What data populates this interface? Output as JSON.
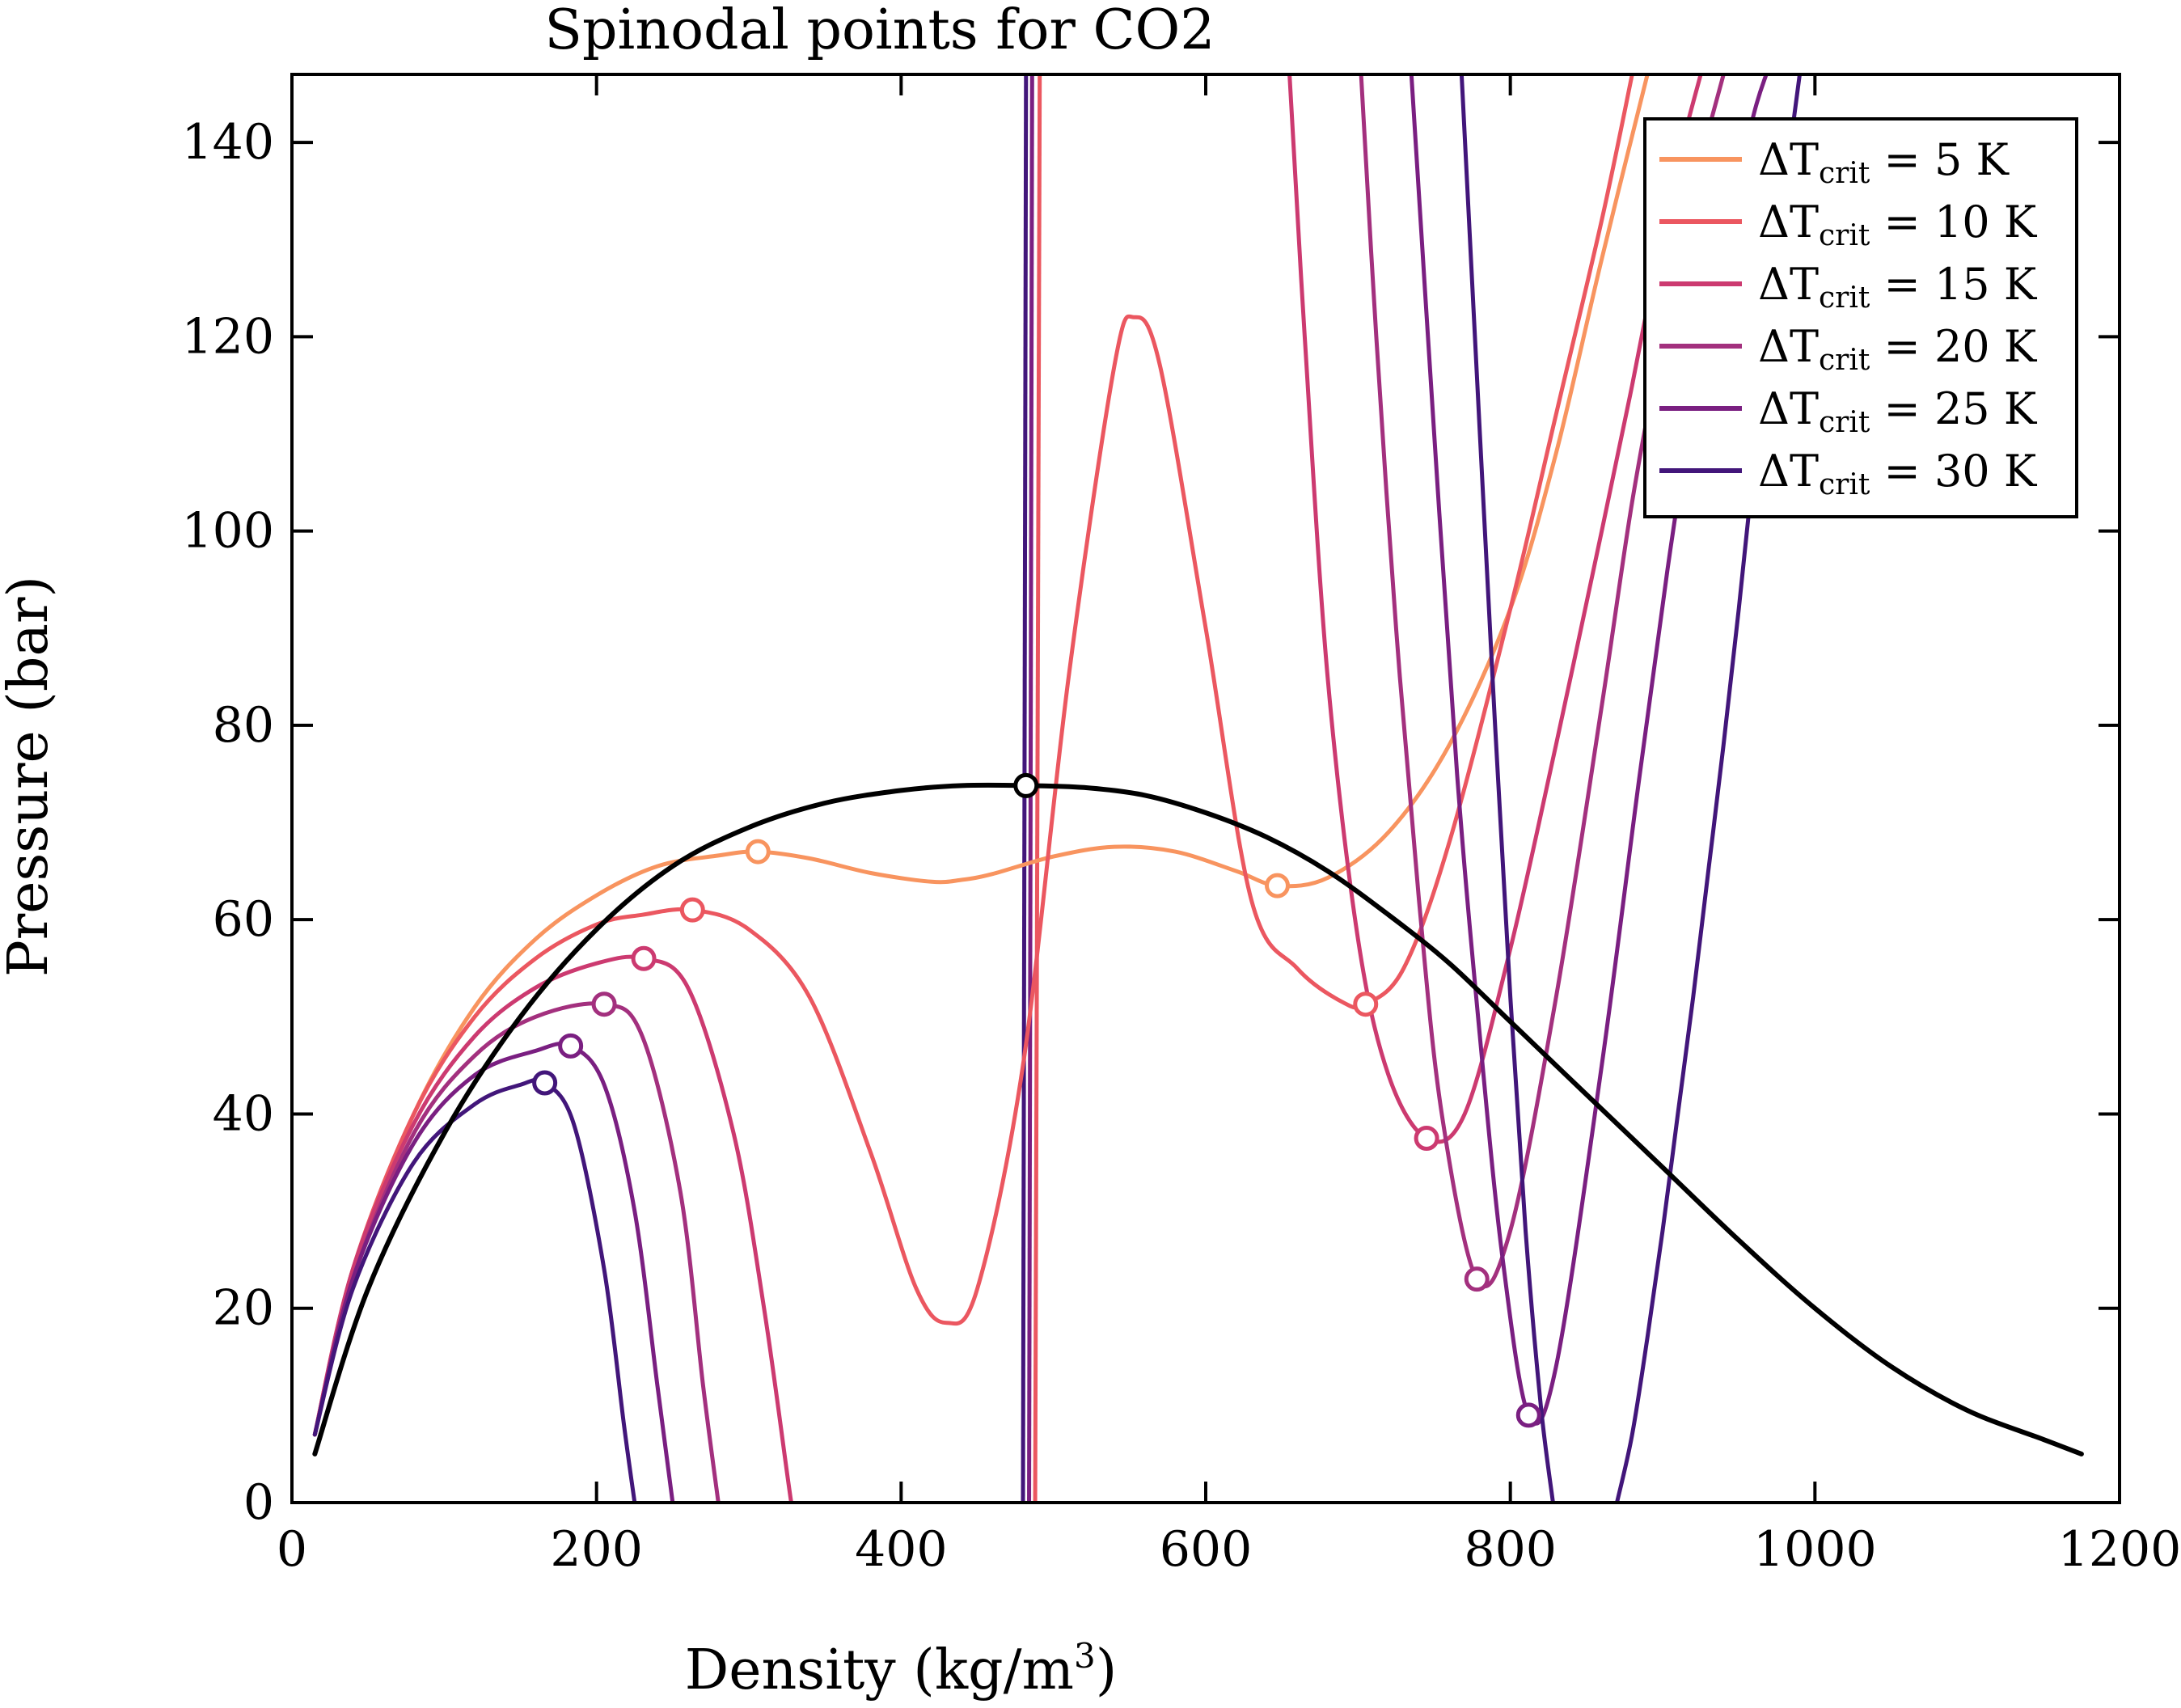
{
  "chart_data": {
    "type": "line",
    "title": "Spinodal points for CO2",
    "xlabel": "Density (kg/m³)",
    "xlabel_parts": {
      "prefix": "Density (kg/m",
      "sup": "3",
      "suffix": ")"
    },
    "ylabel": "Pressure (bar)",
    "xlim": [
      0,
      1200
    ],
    "ylim": [
      0,
      147
    ],
    "xticks": [
      0,
      200,
      400,
      600,
      800,
      1000,
      1200
    ],
    "yticks": [
      0,
      20,
      40,
      60,
      80,
      100,
      120,
      140
    ],
    "grid": false,
    "legend_position": "top-right",
    "series": [
      {
        "name": "ΔT_crit = 5 K",
        "legend": {
          "prefix": "ΔT",
          "sub": "crit",
          "suffix": " = 5 K"
        },
        "color": "#f8945f",
        "x": [
          15,
          40,
          80,
          120,
          160,
          200,
          240,
          280,
          306,
          340,
          380,
          420,
          440,
          460,
          500,
          540,
          580,
          620,
          647,
          680,
          720,
          760,
          800,
          830,
          860,
          890
        ],
        "y": [
          7,
          24,
          40,
          51,
          58,
          62.5,
          65.5,
          66.6,
          67,
          66.3,
          64.8,
          63.9,
          64.1,
          64.7,
          66.5,
          67.5,
          67,
          65,
          63.5,
          64.3,
          69,
          78,
          92,
          108,
          128,
          147
        ],
        "spinodal": [
          [
            306,
            67
          ],
          [
            647,
            63.5
          ]
        ]
      },
      {
        "name": "ΔT_crit = 10 K",
        "legend": {
          "prefix": "ΔT",
          "sub": "crit",
          "suffix": " = 10 K"
        },
        "color": "#eb5760",
        "x": [
          15,
          40,
          80,
          120,
          160,
          200,
          230,
          263,
          300,
          340,
          380,
          410,
          430,
          450,
          480,
          510,
          540,
          553,
          570,
          600,
          630,
          660,
          690,
          705,
          730,
          760,
          800,
          830,
          860,
          880
        ],
        "y": [
          7,
          24,
          40,
          50,
          56,
          59.5,
          60.5,
          61,
          59,
          52,
          36,
          22,
          18.5,
          22,
          45,
          85,
          117,
          122,
          117,
          90,
          62,
          55,
          51.5,
          51.3,
          55,
          68,
          92,
          112,
          132,
          147
        ],
        "spinodal": [
          [
            263,
            61
          ],
          [
            705,
            51.3
          ]
        ]
      },
      {
        "name": "ΔT_crit = 15 K",
        "legend": {
          "prefix": "ΔT",
          "sub": "crit",
          "suffix": " = 15 K"
        },
        "color": "#cc3a70",
        "x": [
          15,
          40,
          80,
          120,
          160,
          200,
          231,
          260,
          290,
          310,
          326,
          328
        ],
        "y": [
          7,
          24,
          39,
          48,
          53,
          55.5,
          56,
          53,
          38,
          20,
          2,
          0
        ],
        "x2": [
          655,
          665,
          680,
          700,
          720,
          745,
          770,
          800,
          830,
          860,
          880,
          895,
          910,
          925
        ],
        "y2": [
          147,
          120,
          85,
          58,
          44,
          37.5,
          40,
          57,
          78,
          100,
          115,
          127,
          138,
          147
        ],
        "spinodal": [
          [
            231,
            56
          ],
          [
            745,
            37.5
          ]
        ]
      },
      {
        "name": "ΔT_crit = 20 K",
        "legend": {
          "prefix": "ΔT",
          "sub": "crit",
          "suffix": " = 20 K"
        },
        "color": "#a3307e",
        "x": [
          15,
          40,
          80,
          120,
          160,
          205,
          230,
          255,
          270,
          280
        ],
        "y": [
          7,
          23,
          38,
          46,
          50,
          51.3,
          48,
          32,
          12,
          0
        ],
        "x2": [
          702,
          712,
          725,
          740,
          755,
          778,
          800,
          830,
          860,
          880,
          900,
          920,
          940
        ],
        "y2": [
          147,
          120,
          90,
          62,
          40,
          23,
          28,
          52,
          82,
          103,
          120,
          135,
          147
        ],
        "spinodal": [
          [
            205,
            51.3
          ],
          [
            778,
            23
          ]
        ]
      },
      {
        "name": "ΔT_crit = 25 K",
        "legend": {
          "prefix": "ΔT",
          "sub": "crit",
          "suffix": " = 25 K"
        },
        "color": "#7a1f81",
        "x": [
          15,
          40,
          80,
          120,
          160,
          183,
          205,
          225,
          240,
          250
        ],
        "y": [
          7,
          23,
          37,
          44,
          46.5,
          47,
          43,
          30,
          12,
          0
        ],
        "x2": [
          735,
          750,
          765,
          780,
          795,
          812,
          830,
          860,
          885,
          905,
          925,
          945,
          960,
          968
        ],
        "y2": [
          147,
          110,
          75,
          48,
          25,
          9,
          14,
          45,
          75,
          98,
          118,
          133,
          143,
          147
        ],
        "spinodal": [
          [
            183,
            47
          ],
          [
            812,
            9
          ]
        ]
      },
      {
        "name": "ΔT_crit = 30 K",
        "legend": {
          "prefix": "ΔT",
          "sub": "crit",
          "suffix": " = 30 K"
        },
        "color": "#42167a",
        "x": [
          15,
          40,
          80,
          120,
          150,
          166,
          185,
          205,
          218,
          225
        ],
        "y": [
          7,
          22,
          35,
          41,
          43,
          43.2,
          39,
          24,
          8,
          0
        ],
        "x2": [
          768,
          780,
          790,
          800,
          810,
          820,
          828
        ],
        "y2": [
          147,
          110,
          80,
          52,
          28,
          10,
          0
        ],
        "x3": [
          870,
          880,
          890,
          900,
          910,
          920,
          930,
          940,
          950,
          960,
          970,
          980,
          990
        ],
        "y3": [
          0,
          7,
          17,
          28,
          40,
          52,
          65,
          78,
          92,
          107,
          122,
          135,
          147
        ],
        "spinodal": [
          [
            166,
            43.2
          ]
        ]
      },
      {
        "name": "",
        "color": "#000000",
        "x": [
          15,
          50,
          100,
          150,
          200,
          250,
          300,
          350,
          400,
          440,
          482,
          520,
          560,
          600,
          640,
          680,
          720,
          760,
          800,
          850,
          900,
          950,
          1000,
          1050,
          1100,
          1150,
          1175
        ],
        "y": [
          5,
          22,
          38,
          50,
          59,
          65.5,
          69.5,
          72,
          73.3,
          73.8,
          73.8,
          73.6,
          72.8,
          71,
          68.5,
          65,
          60.5,
          55.5,
          49.5,
          42,
          34.5,
          27,
          20,
          14,
          9.5,
          6.5,
          5
        ],
        "spinodal": [
          [
            482,
            73.8
          ]
        ]
      }
    ],
    "vertical_segments": [
      {
        "color": "#42167a",
        "x": [
          480,
          482
        ],
        "y": [
          0,
          147
        ]
      },
      {
        "color": "#7a1f81",
        "x": [
          484,
          486
        ],
        "y": [
          0,
          147
        ]
      },
      {
        "color": "#eb5760",
        "x": [
          488,
          491
        ],
        "y": [
          0,
          147
        ]
      }
    ]
  }
}
